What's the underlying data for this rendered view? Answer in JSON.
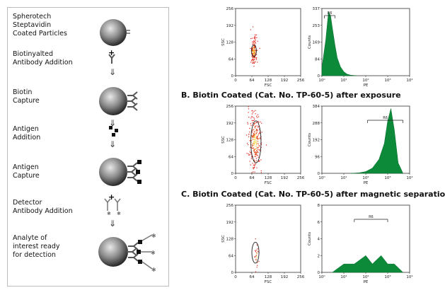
{
  "steps": [
    {
      "label1": "Spherotech",
      "label2": "Steptavidin",
      "label3": "Coated Particles"
    },
    {
      "label1": "Biotinyalted",
      "label2": "Antibody Addition"
    },
    {
      "label1": "Biotin",
      "label2": "Capture"
    },
    {
      "label1": "Antigen",
      "label2": "Addition"
    },
    {
      "label1": "Antigen",
      "label2": "Capture"
    },
    {
      "label1": "Detector",
      "label2": "Antibody Addition"
    },
    {
      "label1": "Analyte of",
      "label2": "interest ready",
      "label3": "for detection"
    }
  ],
  "sections": {
    "b_heading": "B. Biotin Coated (Cat. No. TP-60-5) after exposure",
    "c_heading": "C. Biotin Coated (Cat. No. TP-60-5) after magnetic separatio"
  },
  "scatter_axes": {
    "xlabel": "FSC",
    "ylabel": "SSC",
    "ticks": [
      "0",
      "64",
      "128",
      "192",
      "256"
    ]
  },
  "hist_axes": {
    "xlabel": "PE",
    "ylabel": "Counts",
    "xticks": [
      "10⁰",
      "10¹",
      "10²",
      "10³",
      "10⁴"
    ],
    "gate_label": "R6"
  },
  "row1": {
    "yticks": [
      "0",
      "84",
      "169",
      "253",
      "337"
    ]
  },
  "row2": {
    "yticks": [
      "0",
      "96",
      "192",
      "288",
      "384"
    ]
  },
  "row3": {
    "yticks": [
      "0",
      "2",
      "4",
      "6",
      "8"
    ]
  },
  "chart_data": [
    {
      "type": "scatter",
      "title": "",
      "xlabel": "FSC",
      "ylabel": "SSC",
      "xlim": [
        0,
        256
      ],
      "ylim": [
        0,
        256
      ],
      "cluster": {
        "center": [
          70,
          95
        ],
        "spread": [
          6,
          28
        ],
        "n": 160
      },
      "gate": {
        "cx": 72,
        "cy": 95,
        "rx": 10,
        "ry": 22
      }
    },
    {
      "type": "area",
      "title": "",
      "xlabel": "PE",
      "ylabel": "Counts",
      "xscale": "log",
      "ylim": [
        0,
        337
      ],
      "x": [
        1,
        1.5,
        2,
        2.5,
        3,
        4,
        5,
        7,
        10,
        14,
        20,
        40
      ],
      "y": [
        40,
        180,
        320,
        300,
        240,
        150,
        90,
        45,
        20,
        8,
        3,
        0
      ],
      "gate": [
        1.3,
        4
      ]
    },
    {
      "type": "scatter",
      "title": "",
      "xlabel": "FSC",
      "ylabel": "SSC",
      "xlim": [
        0,
        256
      ],
      "ylim": [
        0,
        256
      ],
      "cluster": {
        "center": [
          75,
          120
        ],
        "spread": [
          14,
          60
        ],
        "n": 260
      },
      "gate": {
        "cx": 80,
        "cy": 120,
        "rx": 20,
        "ry": 80
      }
    },
    {
      "type": "area",
      "title": "",
      "xlabel": "PE",
      "ylabel": "Counts",
      "xscale": "log",
      "ylim": [
        0,
        384
      ],
      "x": [
        20,
        50,
        100,
        200,
        400,
        700,
        1000,
        1400,
        2000,
        3000,
        5000
      ],
      "y": [
        0,
        3,
        10,
        30,
        80,
        170,
        300,
        370,
        250,
        60,
        0
      ],
      "gate": [
        120,
        5000
      ]
    },
    {
      "type": "scatter",
      "title": "",
      "xlabel": "FSC",
      "ylabel": "SSC",
      "xlim": [
        0,
        256
      ],
      "ylim": [
        0,
        256
      ],
      "cluster": {
        "center": [
          82,
          60
        ],
        "spread": [
          4,
          30
        ],
        "n": 25
      },
      "gate": {
        "cx": 78,
        "cy": 75,
        "rx": 14,
        "ry": 40
      }
    },
    {
      "type": "area",
      "title": "",
      "xlabel": "PE",
      "ylabel": "Counts",
      "xscale": "log",
      "ylim": [
        0,
        8
      ],
      "x": [
        3,
        10,
        30,
        100,
        200,
        500,
        1000,
        2000,
        5000
      ],
      "y": [
        0,
        1,
        1,
        2,
        1,
        2,
        1,
        1,
        0
      ],
      "gate": [
        30,
        1000
      ]
    }
  ]
}
